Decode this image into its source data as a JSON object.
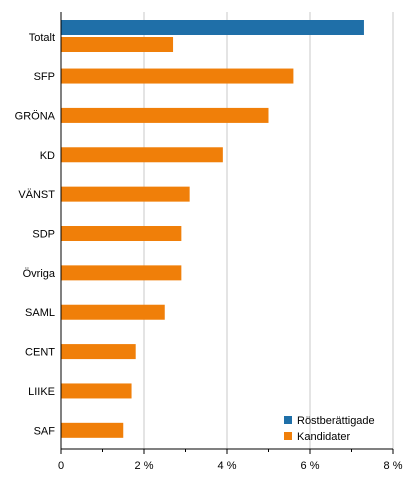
{
  "chart_data": {
    "type": "bar",
    "orientation": "horizontal",
    "categories": [
      "Totalt",
      "SFP",
      "GRÖNA",
      "KD",
      "VÄNST",
      "SDP",
      "Övriga",
      "SAML",
      "CENT",
      "LIIKE",
      "SAF"
    ],
    "series": [
      {
        "name": "Röstberättigade",
        "color": "#1f6fa8",
        "values": [
          7.3,
          null,
          null,
          null,
          null,
          null,
          null,
          null,
          null,
          null,
          null
        ]
      },
      {
        "name": "Kandidater",
        "color": "#f07f09",
        "values": [
          2.7,
          5.6,
          5.0,
          3.9,
          3.1,
          2.9,
          2.9,
          2.5,
          1.8,
          1.7,
          1.5
        ]
      }
    ],
    "xlim": [
      0,
      8
    ],
    "x_ticks": [
      "0",
      "2 %",
      "4 %",
      "6 %",
      "8 %"
    ],
    "grid": true,
    "legend_position": "bottom-right"
  }
}
